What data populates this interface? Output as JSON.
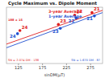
{
  "chart_data": {
    "type": "scatter",
    "title": "Cycle Maximum vs. Dipole Moment",
    "x_label": "sinDM(µT)",
    "xlim": [
      100,
      300
    ],
    "xticks": [
      125,
      175,
      225,
      275
    ],
    "ylim": [
      0,
      200
    ],
    "tick_labels": "x",
    "grid": false,
    "series": [
      {
        "name": "3-year Average",
        "color": "#e02020",
        "marker": "circle",
        "x": [
          128,
          208,
          242,
          278
        ],
        "values": [
          117,
          139,
          172,
          181
        ],
        "labels": [
          "24",
          "23",
          "22",
          "21"
        ]
      },
      {
        "name": "1-year Average",
        "color": "#2050d0",
        "marker": "circle",
        "x": [
          123,
          212,
          245,
          283
        ],
        "values": [
          106,
          125,
          161,
          169
        ],
        "labels": [
          "24",
          "23",
          "22",
          "21"
        ]
      },
      {
        "type": "line",
        "color": "#e02020",
        "line_style": "solid",
        "x": [
          100,
          300
        ],
        "values": [
          69,
          189
        ]
      },
      {
        "type": "line",
        "color": "#2050d0",
        "line_style": "solid",
        "x": [
          100,
          300
        ],
        "values": [
          56,
          181
        ]
      }
    ],
    "annotations": [
      {
        "text": "188 ± 15",
        "color": "#e02020"
      },
      {
        "text": "SN = 2.074 DM - 138",
        "color": "#e02020"
      },
      {
        "text": "SN = 1.670 DM - 87",
        "color": "#2050d0"
      }
    ]
  }
}
